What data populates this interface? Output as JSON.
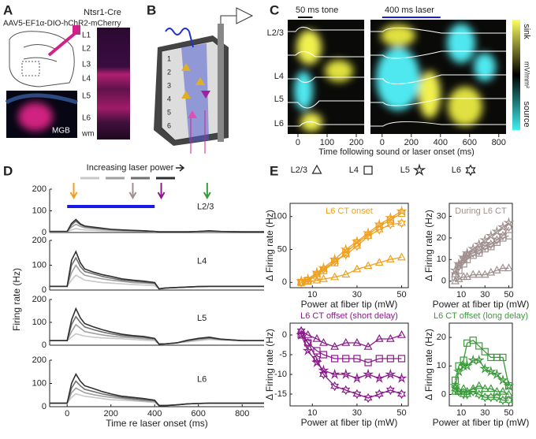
{
  "panels": {
    "A": {
      "label": "A",
      "construct": "AAV5-EF1α-DIO-hChR2-mCherry",
      "mouse": "Ntsr1-Cre",
      "region": "MGB",
      "layers": [
        "L1",
        "L2",
        "L3",
        "L4",
        "L5",
        "L6",
        "wm"
      ]
    },
    "B": {
      "label": "B",
      "layers": [
        "1",
        "2",
        "3",
        "4",
        "5",
        "6"
      ]
    },
    "C": {
      "label": "C",
      "tone": "50 ms tone",
      "tone_duration": 50,
      "laser": "400 ms laser",
      "laser_duration": 400,
      "layers": [
        "L2/3",
        "L4",
        "L5",
        "L6"
      ],
      "xlabel": "Time following sound or laser onset (ms)",
      "xlim_left": [
        -35,
        227
      ],
      "xticks_left": [
        0,
        100,
        200
      ],
      "xlim_right": [
        -80,
        850
      ],
      "xticks_right": [
        0,
        200,
        400,
        600,
        800
      ],
      "sink": "sink",
      "source": "source",
      "unit": "mV/mm²"
    },
    "D": {
      "label": "D"
    },
    "E": {
      "label": "E",
      "legend": [
        "L2/3",
        "L4",
        "L5",
        "L6"
      ]
    }
  },
  "chart_data": [
    {
      "type": "line",
      "title": "L2/3",
      "legend_title": "Increasing laser power",
      "ylim": [
        0,
        200
      ],
      "yticks": [
        0,
        100,
        200
      ],
      "xlim": [
        -80,
        900
      ],
      "laser": {
        "start": 0,
        "end": 400,
        "color": "#1a1ae6"
      },
      "arrows": [
        {
          "x": 30,
          "color": "#f0a020"
        },
        {
          "x": 300,
          "color": "#a09090"
        },
        {
          "x": 430,
          "color": "#8b1a8b"
        },
        {
          "x": 640,
          "color": "#3a9a3a"
        }
      ],
      "x": [
        -80,
        -40,
        0,
        20,
        40,
        60,
        80,
        120,
        160,
        200,
        250,
        300,
        350,
        400,
        420,
        450,
        500,
        550,
        600,
        650,
        700,
        800,
        900
      ],
      "series": [
        {
          "color": "#c8c8c8",
          "values": [
            3,
            3,
            3,
            12,
            18,
            14,
            12,
            10,
            8,
            7,
            6,
            5,
            5,
            3,
            3,
            3,
            3,
            3,
            3,
            4,
            3,
            3,
            3
          ]
        },
        {
          "color": "#a0a0a0",
          "values": [
            4,
            4,
            4,
            25,
            38,
            28,
            22,
            18,
            14,
            11,
            9,
            8,
            7,
            4,
            3,
            3,
            3,
            3,
            4,
            6,
            4,
            3,
            3
          ]
        },
        {
          "color": "#707070",
          "values": [
            5,
            5,
            5,
            35,
            52,
            36,
            28,
            22,
            18,
            14,
            11,
            9,
            8,
            5,
            3,
            3,
            3,
            3,
            5,
            7,
            5,
            3,
            3
          ]
        },
        {
          "color": "#303030",
          "values": [
            5,
            5,
            5,
            42,
            60,
            40,
            30,
            25,
            20,
            15,
            12,
            10,
            8,
            5,
            3,
            3,
            3,
            3,
            5,
            8,
            5,
            3,
            3
          ]
        }
      ]
    },
    {
      "type": "line",
      "title": "L4",
      "ylim": [
        0,
        200
      ],
      "yticks": [
        0,
        100,
        200
      ],
      "xlim": [
        -80,
        900
      ],
      "x": [
        -80,
        -40,
        0,
        20,
        40,
        60,
        80,
        120,
        160,
        200,
        250,
        300,
        350,
        400,
        420,
        450,
        500,
        550,
        600,
        650,
        700,
        800,
        900
      ],
      "series": [
        {
          "color": "#c8c8c8",
          "values": [
            15,
            15,
            15,
            40,
            60,
            50,
            40,
            35,
            30,
            28,
            25,
            22,
            20,
            18,
            5,
            8,
            10,
            12,
            14,
            15,
            15,
            15,
            15
          ]
        },
        {
          "color": "#a0a0a0",
          "values": [
            15,
            15,
            15,
            70,
            100,
            75,
            60,
            52,
            45,
            40,
            35,
            30,
            28,
            25,
            5,
            8,
            10,
            12,
            14,
            15,
            15,
            15,
            15
          ]
        },
        {
          "color": "#707070",
          "values": [
            15,
            15,
            15,
            100,
            130,
            95,
            75,
            65,
            55,
            48,
            40,
            36,
            32,
            28,
            5,
            8,
            10,
            12,
            14,
            15,
            15,
            15,
            15
          ]
        },
        {
          "color": "#303030",
          "values": [
            15,
            15,
            15,
            120,
            155,
            110,
            85,
            72,
            62,
            55,
            45,
            40,
            36,
            30,
            5,
            8,
            10,
            12,
            14,
            15,
            15,
            15,
            15
          ]
        }
      ]
    },
    {
      "type": "line",
      "title": "L5",
      "ylim": [
        0,
        200
      ],
      "yticks": [
        0,
        100,
        200
      ],
      "xlim": [
        -80,
        900
      ],
      "x": [
        -80,
        -40,
        0,
        20,
        40,
        60,
        80,
        120,
        160,
        200,
        250,
        300,
        350,
        400,
        420,
        450,
        500,
        550,
        600,
        650,
        700,
        800,
        900
      ],
      "series": [
        {
          "color": "#c8c8c8",
          "values": [
            20,
            20,
            20,
            35,
            50,
            45,
            40,
            35,
            32,
            30,
            28,
            25,
            22,
            20,
            5,
            6,
            10,
            15,
            20,
            25,
            22,
            20,
            20
          ]
        },
        {
          "color": "#a0a0a0",
          "values": [
            20,
            20,
            20,
            60,
            90,
            75,
            60,
            52,
            45,
            40,
            35,
            32,
            28,
            25,
            5,
            6,
            10,
            18,
            25,
            30,
            25,
            20,
            20
          ]
        },
        {
          "color": "#707070",
          "values": [
            20,
            20,
            20,
            90,
            125,
            100,
            80,
            68,
            58,
            50,
            42,
            38,
            34,
            28,
            5,
            6,
            10,
            20,
            28,
            32,
            26,
            20,
            20
          ]
        },
        {
          "color": "#303030",
          "values": [
            20,
            20,
            20,
            110,
            160,
            120,
            95,
            80,
            68,
            58,
            48,
            42,
            38,
            30,
            5,
            6,
            10,
            22,
            30,
            35,
            27,
            20,
            20
          ]
        }
      ]
    },
    {
      "type": "line",
      "title": "L6",
      "ylim": [
        0,
        200
      ],
      "yticks": [
        0,
        100,
        200
      ],
      "xlim": [
        -80,
        900
      ],
      "xticks": [
        0,
        200,
        400,
        600,
        800
      ],
      "xlabel": "Time re laser onset (ms)",
      "ylabel": "Firing rate (Hz)",
      "x": [
        -80,
        -40,
        0,
        20,
        40,
        60,
        80,
        120,
        160,
        200,
        250,
        300,
        350,
        400,
        420,
        450,
        500,
        550,
        600,
        650,
        700,
        800,
        900
      ],
      "series": [
        {
          "color": "#c8c8c8",
          "values": [
            15,
            15,
            15,
            40,
            55,
            50,
            45,
            40,
            35,
            30,
            28,
            25,
            22,
            18,
            5,
            5,
            8,
            12,
            14,
            15,
            15,
            15,
            15
          ]
        },
        {
          "color": "#a0a0a0",
          "values": [
            15,
            15,
            15,
            60,
            80,
            70,
            60,
            52,
            45,
            40,
            35,
            30,
            25,
            22,
            5,
            5,
            8,
            12,
            14,
            15,
            15,
            15,
            15
          ]
        },
        {
          "color": "#707070",
          "values": [
            15,
            15,
            15,
            80,
            110,
            90,
            75,
            65,
            55,
            48,
            40,
            35,
            30,
            25,
            5,
            5,
            8,
            12,
            14,
            15,
            15,
            15,
            15
          ]
        },
        {
          "color": "#303030",
          "values": [
            15,
            15,
            15,
            100,
            140,
            110,
            90,
            78,
            65,
            55,
            45,
            40,
            35,
            28,
            5,
            5,
            8,
            12,
            14,
            15,
            15,
            15,
            15
          ]
        }
      ]
    },
    {
      "type": "line",
      "title": "L6 CT onset",
      "color": "#f0a020",
      "xlim": [
        0,
        53
      ],
      "xticks": [
        10,
        30,
        50
      ],
      "ylim": [
        -8,
        120
      ],
      "yticks": [
        0,
        50,
        100
      ],
      "xlabel": "Power at fiber tip (mW)",
      "ylabel": "Δ Firing rate (Hz)",
      "x": [
        5,
        8,
        12,
        15,
        20,
        25,
        30,
        35,
        40,
        45,
        50
      ],
      "series": [
        {
          "marker": "triangle",
          "values": [
            0,
            1,
            3,
            5,
            8,
            12,
            20,
            25,
            30,
            35,
            38
          ]
        },
        {
          "marker": "square",
          "values": [
            0,
            3,
            10,
            18,
            30,
            45,
            60,
            72,
            85,
            95,
            105
          ]
        },
        {
          "marker": "star",
          "values": [
            2,
            5,
            15,
            22,
            35,
            50,
            62,
            75,
            88,
            98,
            108
          ]
        },
        {
          "marker": "hexagram",
          "values": [
            0,
            4,
            12,
            20,
            32,
            42,
            55,
            70,
            80,
            88,
            90
          ]
        }
      ]
    },
    {
      "type": "line",
      "title": "During L6 CT",
      "color": "#a09090",
      "xlim": [
        0,
        53
      ],
      "xticks": [
        10,
        30,
        50
      ],
      "ylim": [
        -3,
        36
      ],
      "yticks": [
        0,
        10,
        20,
        30
      ],
      "xlabel": "Power at fiber tip (mW)",
      "ylabel": "Δ Firing rate (Hz)",
      "x": [
        5,
        8,
        12,
        15,
        20,
        25,
        30,
        35,
        40,
        45,
        50
      ],
      "series": [
        {
          "marker": "triangle",
          "values": [
            0,
            1,
            2,
            2,
            3,
            3,
            3,
            4,
            5,
            6,
            6
          ]
        },
        {
          "marker": "square",
          "values": [
            2,
            5,
            8,
            10,
            12,
            13,
            15,
            16,
            18,
            20,
            21
          ]
        },
        {
          "marker": "star",
          "values": [
            5,
            8,
            11,
            13,
            15,
            17,
            19,
            21,
            23,
            25,
            27
          ]
        },
        {
          "marker": "hexagram",
          "values": [
            3,
            7,
            10,
            12,
            13,
            14,
            16,
            17,
            19,
            21,
            25
          ]
        }
      ]
    },
    {
      "type": "line",
      "title": "L6 CT offset (short delay)",
      "color": "#8b1a8b",
      "xlim": [
        0,
        53
      ],
      "xticks": [
        10,
        30,
        50
      ],
      "ylim": [
        -18,
        3
      ],
      "yticks": [
        -15,
        -10,
        -5,
        0
      ],
      "xlabel": "Power at fiber tip (mW)",
      "ylabel": "Δ Firing rate (Hz)",
      "x": [
        5,
        8,
        12,
        15,
        20,
        25,
        30,
        35,
        40,
        45,
        50
      ],
      "series": [
        {
          "marker": "triangle",
          "values": [
            1,
            0,
            -1,
            -2,
            -3,
            -2,
            -2,
            -3,
            -1,
            -1,
            0
          ]
        },
        {
          "marker": "square",
          "values": [
            0,
            -2,
            -4,
            -5,
            -6,
            -6,
            -6,
            -7,
            -6,
            -6,
            -6
          ]
        },
        {
          "marker": "star",
          "values": [
            0,
            -4,
            -7,
            -9,
            -10,
            -10,
            -11,
            -10,
            -11,
            -10,
            -11
          ]
        },
        {
          "marker": "hexagram",
          "values": [
            1,
            -2,
            -6,
            -10,
            -13,
            -14,
            -15,
            -16,
            -15,
            -14,
            -15
          ]
        }
      ]
    },
    {
      "type": "line",
      "title": "L6 CT offset (long delay)",
      "color": "#3a9a3a",
      "xlim": [
        0,
        53
      ],
      "xticks": [
        10,
        30,
        50
      ],
      "ylim": [
        -4,
        25
      ],
      "yticks": [
        0,
        10,
        20
      ],
      "xlabel": "Power at fiber tip (mW)",
      "ylabel": "Δ Firing rate (Hz)",
      "x": [
        5,
        8,
        12,
        15,
        20,
        25,
        30,
        35,
        40,
        45,
        50
      ],
      "series": [
        {
          "marker": "triangle",
          "values": [
            1,
            1,
            2,
            1,
            2,
            3,
            2,
            2,
            1,
            1,
            0
          ]
        },
        {
          "marker": "square",
          "values": [
            5,
            10,
            12,
            18,
            19,
            17,
            15,
            13,
            13,
            13,
            3
          ]
        },
        {
          "marker": "star",
          "values": [
            3,
            8,
            10,
            10,
            12,
            12,
            9,
            8,
            7,
            5,
            3
          ]
        },
        {
          "marker": "hexagram",
          "values": [
            2,
            1,
            0,
            0,
            1,
            0,
            -1,
            -1,
            -1,
            -2,
            -2
          ]
        }
      ]
    }
  ]
}
